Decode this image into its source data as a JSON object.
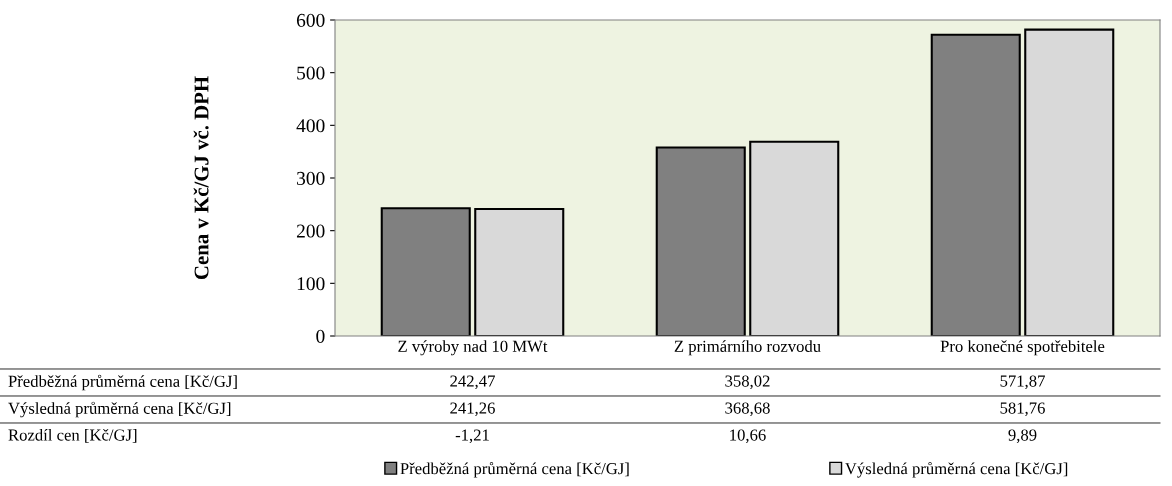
{
  "chart_data": {
    "type": "bar",
    "ylabel": "Cena v Kč/GJ vč. DPH",
    "categories": [
      "Z výroby nad 10 MWt",
      "Z primárního rozvodu",
      "Pro konečné spotřebitele"
    ],
    "series": [
      {
        "name": "Předběžná průměrná cena [Kč/GJ]",
        "color": "#808080",
        "values": [
          242.47,
          358.02,
          571.87
        ],
        "value_labels": [
          "242,47",
          "358,02",
          "571,87"
        ]
      },
      {
        "name": "Výsledná průměrná cena [Kč/GJ]",
        "color": "#d9d9d9",
        "values": [
          241.26,
          368.68,
          581.76
        ],
        "value_labels": [
          "241,26",
          "368,68",
          "581,76"
        ]
      }
    ],
    "annotations": [
      "Rozdíl cen [Kč/GJ]",
      "-1,21",
      "10,66",
      "9,89"
    ],
    "ylim": [
      0,
      600
    ],
    "yticks": [
      0,
      100,
      200,
      300,
      400,
      500,
      600
    ],
    "grid": false,
    "legend": "bottom"
  }
}
